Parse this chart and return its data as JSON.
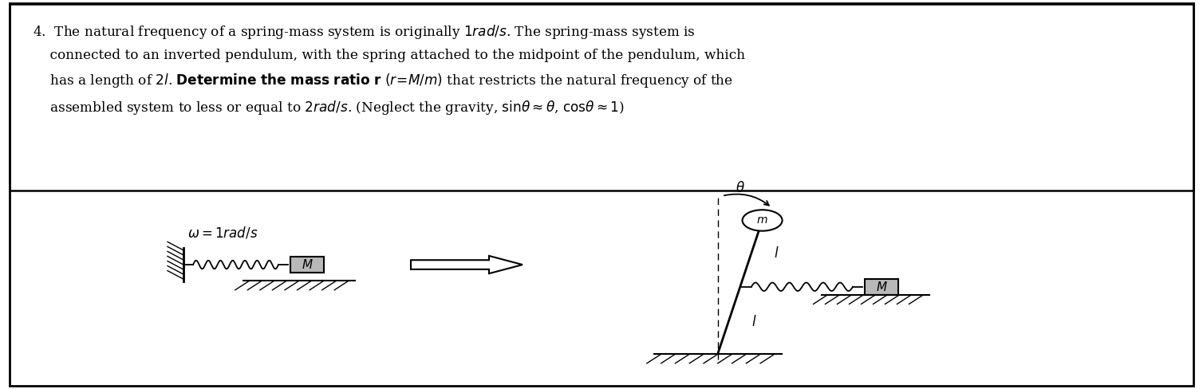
{
  "bg_color": "#ffffff",
  "border_color": "#000000",
  "text_color": "#000000",
  "fig_width": 15.08,
  "fig_height": 4.88,
  "dpi": 100,
  "line1": "4.  The natural frequency of a spring-mass system is originally $\\mathit{1rad/s}$. The spring-mass system is",
  "line2": "    connected to an inverted pendulum, with the spring attached to the midpoint of the pendulum, which",
  "line3": "    has a length of $\\mathit{2l}$. \\textbf{Determine the mass ratio} $\\mathbf{r}$ $(r\\!=\\!M/m)$ that restricts the natural frequency of the",
  "line4": "    assembled system to less or equal to $\\mathit{2rad/s}$. (Neglect the gravity, $\\sin\\theta \\approx \\theta$, $\\cos\\theta \\approx 1$)",
  "omega_label": "$\\omega = 1rad/s$"
}
